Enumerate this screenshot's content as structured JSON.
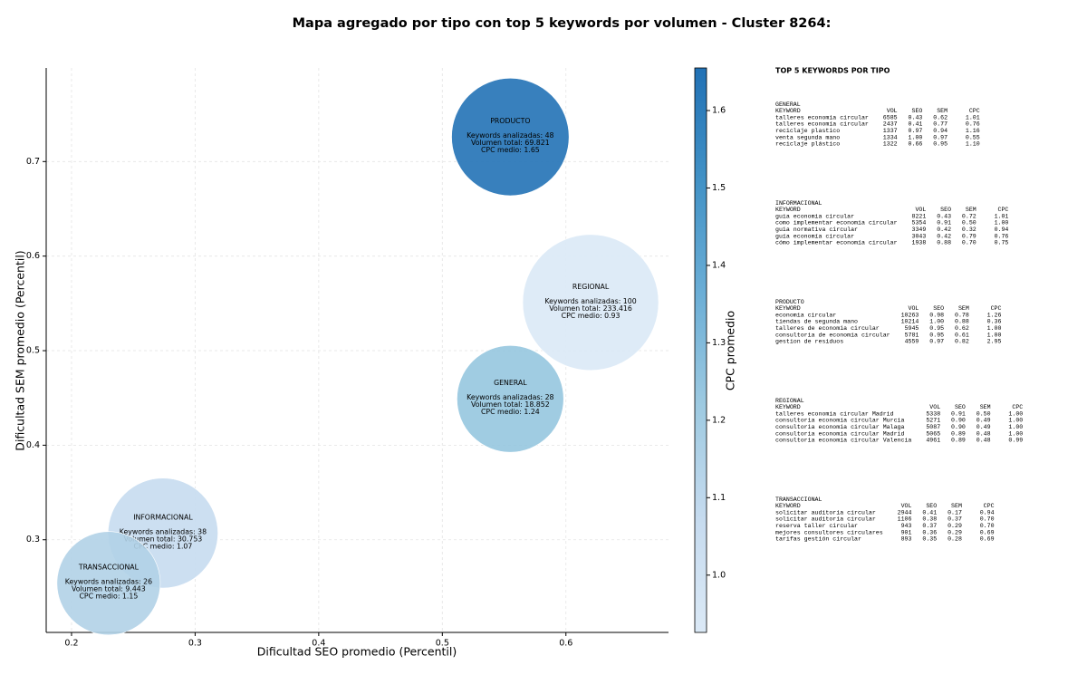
{
  "chart_data": {
    "type": "bubble",
    "title": "Mapa agregado por tipo con top 5 keywords por volumen - Cluster 8264:",
    "x_label": "Dificultad SEO promedio (Percentil)",
    "y_label": "Dificultad SEM promedio (Percentil)",
    "colorbar_label": "CPC promedio",
    "xlim": [
      0.1795,
      0.683
    ],
    "ylim": [
      0.202,
      0.799
    ],
    "xticks": [
      0.2,
      0.3,
      0.4,
      0.5,
      0.6
    ],
    "yticks": [
      0.3,
      0.4,
      0.5,
      0.6,
      0.7
    ],
    "clim": [
      0.926,
      1.655
    ],
    "cticks": [
      {
        "value": 1,
        "label": "1.0"
      },
      1.1,
      1.2,
      1.3,
      1.4,
      1.5,
      1.6
    ],
    "colormap": [
      "#dbe9f6",
      "#c6dbef",
      "#9ecae1",
      "#6baed6",
      "#4292c6",
      "#2171b5"
    ],
    "grid": true,
    "points": [
      {
        "name": "PRODUCTO",
        "x": 0.555,
        "y": 0.726,
        "volume": 69821,
        "cpc": 1.65,
        "lines": [
          "Keywords analizadas: 48",
          "Volumen total: 69.821",
          "CPC medio: 1.65"
        ]
      },
      {
        "name": "REGIONAL",
        "x": 0.62,
        "y": 0.551,
        "volume": 233416,
        "cpc": 0.93,
        "lines": [
          "Keywords analizadas: 100",
          "Volumen total: 233.416",
          "CPC medio: 0.93"
        ]
      },
      {
        "name": "GENERAL",
        "x": 0.555,
        "y": 0.449,
        "volume": 18852,
        "cpc": 1.24,
        "lines": [
          "Keywords analizadas: 28",
          "Volumen total: 18.852",
          "CPC medio: 1.24"
        ]
      },
      {
        "name": "INFORMACIONAL",
        "x": 0.274,
        "y": 0.307,
        "volume": 30753,
        "cpc": 1.07,
        "lines": [
          "Keywords analizadas: 38",
          "Volumen total: 30.753",
          "CPC medio: 1.07"
        ]
      },
      {
        "name": "TRANSACCIONAL",
        "x": 0.23,
        "y": 0.254,
        "volume": 9443,
        "cpc": 1.15,
        "lines": [
          "Keywords analizadas: 26",
          "Volumen total: 9.443",
          "CPC medio: 1.15"
        ]
      }
    ],
    "side_panel": {
      "title": "TOP 5 KEYWORDS POR TIPO",
      "columns": [
        "KEYWORD",
        "VOL",
        "SEO",
        "SEM",
        "CPC"
      ],
      "groups": [
        {
          "name": "GENERAL",
          "rows": [
            [
              "talleres economia circular",
              "6585",
              "0.43",
              "0.62",
              "1.01"
            ],
            [
              "talleres economía circular",
              "2437",
              "0.41",
              "0.77",
              "0.76"
            ],
            [
              "reciclaje plastico",
              "1337",
              "0.97",
              "0.94",
              "1.16"
            ],
            [
              "venta segunda mano",
              "1334",
              "1.00",
              "0.97",
              "0.55"
            ],
            [
              "reciclaje plástico",
              "1322",
              "0.66",
              "0.95",
              "1.10"
            ]
          ]
        },
        {
          "name": "INFORMACIONAL",
          "rows": [
            [
              "guia economia circular",
              "8221",
              "0.43",
              "0.72",
              "1.01"
            ],
            [
              "como implementar economia circular",
              "5354",
              "0.91",
              "0.50",
              "1.00"
            ],
            [
              "guia normativa circular",
              "3349",
              "0.42",
              "0.32",
              "0.94"
            ],
            [
              "guía economía circular",
              "3043",
              "0.42",
              "0.79",
              "0.76"
            ],
            [
              "cómo implementar economía circular",
              "1938",
              "0.88",
              "0.70",
              "0.75"
            ]
          ]
        },
        {
          "name": "PRODUCTO",
          "rows": [
            [
              "economia circular",
              "10263",
              "0.98",
              "0.78",
              "1.26"
            ],
            [
              "tiendas de segunda mano",
              "10214",
              "1.00",
              "0.88",
              "0.36"
            ],
            [
              "talleres de economia circular",
              "5945",
              "0.95",
              "0.62",
              "1.00"
            ],
            [
              "consultoria de economia circular",
              "5781",
              "0.95",
              "0.61",
              "1.00"
            ],
            [
              "gestion de residuos",
              "4559",
              "0.97",
              "0.82",
              "2.95"
            ]
          ]
        },
        {
          "name": "REGIONAL",
          "rows": [
            [
              "talleres economia circular Madrid",
              "5338",
              "0.91",
              "0.50",
              "1.00"
            ],
            [
              "consultoria economia circular Murcia",
              "5271",
              "0.90",
              "0.49",
              "1.00"
            ],
            [
              "consultoria economia circular Malaga",
              "5087",
              "0.90",
              "0.49",
              "1.00"
            ],
            [
              "consultoria economia circular Madrid",
              "5065",
              "0.89",
              "0.48",
              "1.00"
            ],
            [
              "consultoria economia circular Valencia",
              "4961",
              "0.89",
              "0.48",
              "0.99"
            ]
          ]
        },
        {
          "name": "TRANSACCIONAL",
          "rows": [
            [
              "solicitar auditoria circular",
              "2944",
              "0.41",
              "0.17",
              "0.94"
            ],
            [
              "solicitar auditoría circular",
              "1106",
              "0.38",
              "0.37",
              "0.70"
            ],
            [
              "reserva taller circular",
              "943",
              "0.37",
              "0.29",
              "0.70"
            ],
            [
              "mejores consultores circulares",
              "901",
              "0.36",
              "0.29",
              "0.69"
            ],
            [
              "tarifas gestión circular",
              "893",
              "0.35",
              "0.28",
              "0.69"
            ]
          ]
        }
      ]
    }
  }
}
